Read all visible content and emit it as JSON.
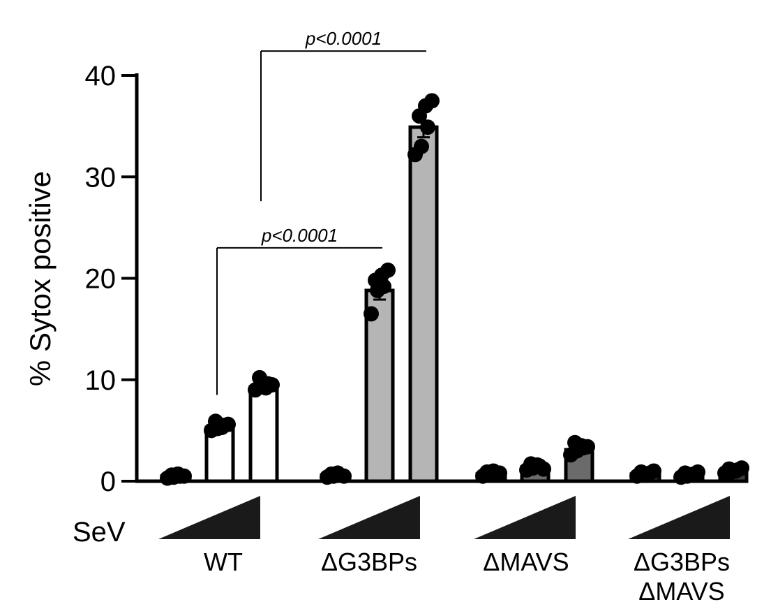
{
  "chart_data": {
    "type": "bar",
    "ylabel": "% Sytox positive",
    "ylim": [
      0,
      40
    ],
    "yticks": [
      "0",
      "10",
      "20",
      "30",
      "40"
    ],
    "treatment_label": "SeV",
    "treatment": "increasing SeV dose (wedge), three doses per group",
    "groups": [
      {
        "name": [
          "WT"
        ],
        "fill": "#ffffff",
        "bars": [
          {
            "value": 0.5,
            "error": 0.2,
            "points": [
              0.3,
              0.4,
              0.5,
              0.6,
              0.7,
              0.5
            ]
          },
          {
            "value": 5.3,
            "error": 0.5,
            "points": [
              5.0,
              5.2,
              5.5,
              5.9,
              5.3,
              5.6
            ]
          },
          {
            "value": 9.3,
            "error": 0.4,
            "points": [
              9.0,
              9.4,
              9.6,
              10.2,
              9.2,
              9.5
            ]
          }
        ]
      },
      {
        "name": [
          "ΔG3BPs"
        ],
        "fill": "#b5b5b5",
        "bars": [
          {
            "value": 0.6,
            "error": 0.2,
            "points": [
              0.4,
              0.5,
              0.6,
              0.7,
              0.8,
              0.5
            ]
          },
          {
            "value": 18.8,
            "error": 0.9,
            "points": [
              16.5,
              18.8,
              19.2,
              19.8,
              20.3,
              20.8
            ]
          },
          {
            "value": 34.9,
            "error": 1.0,
            "points": [
              32.2,
              33.0,
              34.9,
              36.0,
              37.0,
              37.5
            ]
          }
        ]
      },
      {
        "name": [
          "ΔMAVS"
        ],
        "fill": "#6b6b6b",
        "bars": [
          {
            "value": 0.7,
            "error": 0.2,
            "points": [
              0.5,
              0.6,
              0.7,
              0.9,
              1.0,
              0.8
            ]
          },
          {
            "value": 1.4,
            "error": 0.2,
            "points": [
              1.1,
              1.3,
              1.5,
              1.7,
              1.6,
              1.2
            ]
          },
          {
            "value": 3.1,
            "error": 0.4,
            "points": [
              2.6,
              3.0,
              3.3,
              3.8,
              3.5,
              3.4
            ]
          }
        ]
      },
      {
        "name": [
          "ΔG3BPs",
          "ΔMAVS"
        ],
        "fill": "#3a3a3a",
        "bars": [
          {
            "value": 0.7,
            "error": 0.2,
            "points": [
              0.5,
              0.6,
              0.8,
              0.9,
              0.7,
              1.0
            ]
          },
          {
            "value": 0.6,
            "error": 0.2,
            "points": [
              0.4,
              0.5,
              0.7,
              0.8,
              0.6,
              0.9
            ]
          },
          {
            "value": 1.0,
            "error": 0.2,
            "points": [
              0.8,
              0.9,
              1.1,
              1.2,
              1.0,
              1.3
            ]
          }
        ]
      }
    ],
    "significance": [
      {
        "label": "p<0.0001",
        "from": [
          0,
          1
        ],
        "to": [
          1,
          1
        ],
        "y_bar": 23.0,
        "y_from": 8.5,
        "y_to": 23.0
      },
      {
        "label": "p<0.0001",
        "from": [
          0,
          2
        ],
        "to": [
          1,
          2
        ],
        "y_bar": 42.4,
        "y_from": 27.6,
        "y_to": 42.4
      }
    ]
  }
}
